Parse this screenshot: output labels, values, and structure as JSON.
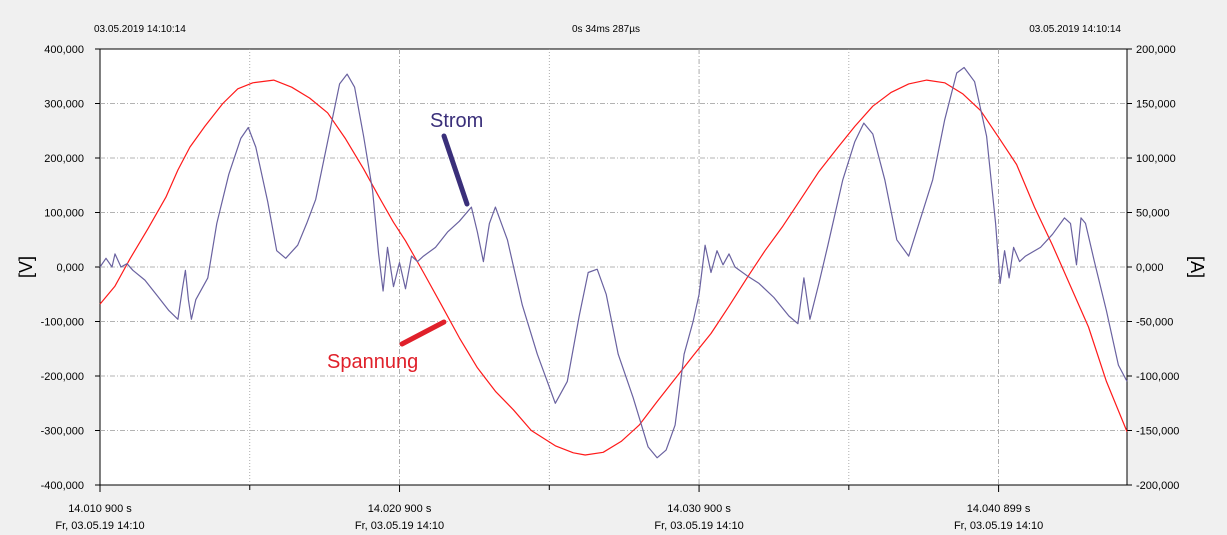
{
  "header": {
    "left_timestamp": "03.05.2019 14:10:14",
    "center_duration": "0s 34ms 287µs",
    "right_timestamp": "03.05.2019 14:10:14"
  },
  "colors": {
    "voltage": "#ff1a1a",
    "current": "#6a62a0",
    "grid": "#9a9a9a",
    "plot_background": "#ffffff",
    "page_background": "#f0f0f0",
    "annotation_strom": "#3a2f7a",
    "annotation_spannung": "#e0202a"
  },
  "annotations": {
    "strom": "Strom",
    "spannung": "Spannung"
  },
  "chart_data": {
    "type": "line",
    "grid": true,
    "x": {
      "unit": "ms",
      "range": [
        0,
        34.287
      ],
      "tick_labels": [
        {
          "x": 0.0,
          "line1": "14.010 900 s",
          "line2": "Fr, 03.05.19 14:10"
        },
        {
          "x": 10.0,
          "line1": "14.020 900 s",
          "line2": "Fr, 03.05.19 14:10"
        },
        {
          "x": 20.0,
          "line1": "14.030 900 s",
          "line2": "Fr, 03.05.19 14:10"
        },
        {
          "x": 30.0,
          "line1": "14.040 899 s",
          "line2": "Fr, 03.05.19 14:10"
        }
      ],
      "minor_ticks": [
        5,
        15,
        25
      ]
    },
    "y_left": {
      "label": "[V]",
      "range": [
        -400000,
        400000
      ],
      "ticks": [
        400000,
        300000,
        200000,
        100000,
        0,
        -100000,
        -200000,
        -300000,
        -400000
      ],
      "tick_labels": [
        "400,000",
        "300,000",
        "200,000",
        "100,000",
        "0,000",
        "-100,000",
        "-200,000",
        "-300,000",
        "-400,000"
      ]
    },
    "y_right": {
      "label": "[A]",
      "range": [
        -200000,
        200000
      ],
      "ticks": [
        200000,
        150000,
        100000,
        50000,
        0,
        -50000,
        -100000,
        -150000,
        -200000
      ],
      "tick_labels": [
        "200,000",
        "150,000",
        "100,000",
        "50,000",
        "0,000",
        "-50,000",
        "-100,000",
        "-150,000",
        "-200,000"
      ]
    },
    "series": [
      {
        "name": "Spannung",
        "axis": "left",
        "points": [
          [
            0.0,
            -68000
          ],
          [
            0.5,
            -35000
          ],
          [
            1.0,
            15000
          ],
          [
            1.6,
            70000
          ],
          [
            2.2,
            128000
          ],
          [
            2.6,
            178000
          ],
          [
            3.0,
            220000
          ],
          [
            3.5,
            258000
          ],
          [
            4.1,
            300000
          ],
          [
            4.6,
            327000
          ],
          [
            5.1,
            338000
          ],
          [
            5.8,
            343000
          ],
          [
            6.4,
            330000
          ],
          [
            7.0,
            310000
          ],
          [
            7.6,
            283000
          ],
          [
            8.2,
            235000
          ],
          [
            8.8,
            180000
          ],
          [
            9.3,
            130000
          ],
          [
            9.8,
            82000
          ],
          [
            10.2,
            48000
          ],
          [
            10.8,
            -10000
          ],
          [
            11.4,
            -70000
          ],
          [
            12.0,
            -130000
          ],
          [
            12.6,
            -185000
          ],
          [
            13.2,
            -228000
          ],
          [
            13.8,
            -262000
          ],
          [
            14.4,
            -300000
          ],
          [
            15.2,
            -328000
          ],
          [
            15.8,
            -341000
          ],
          [
            16.2,
            -345000
          ],
          [
            16.8,
            -340000
          ],
          [
            17.4,
            -320000
          ],
          [
            18.0,
            -290000
          ],
          [
            18.6,
            -247000
          ],
          [
            19.2,
            -205000
          ],
          [
            19.8,
            -163000
          ],
          [
            20.4,
            -122000
          ],
          [
            21.0,
            -72000
          ],
          [
            21.6,
            -20000
          ],
          [
            22.2,
            30000
          ],
          [
            22.8,
            75000
          ],
          [
            23.4,
            125000
          ],
          [
            24.0,
            175000
          ],
          [
            24.6,
            217000
          ],
          [
            25.2,
            258000
          ],
          [
            25.8,
            295000
          ],
          [
            26.4,
            320000
          ],
          [
            27.0,
            336000
          ],
          [
            27.6,
            343000
          ],
          [
            28.2,
            338000
          ],
          [
            28.8,
            318000
          ],
          [
            29.4,
            287000
          ],
          [
            30.0,
            238000
          ],
          [
            30.6,
            188000
          ],
          [
            31.2,
            110000
          ],
          [
            31.8,
            40000
          ],
          [
            32.4,
            -35000
          ],
          [
            33.0,
            -110000
          ],
          [
            33.6,
            -210000
          ],
          [
            34.287,
            -302000
          ]
        ]
      },
      {
        "name": "Strom",
        "axis": "right",
        "points": [
          [
            0.0,
            0
          ],
          [
            0.2,
            8000
          ],
          [
            0.4,
            0
          ],
          [
            0.5,
            12000
          ],
          [
            0.7,
            0
          ],
          [
            0.9,
            3000
          ],
          [
            1.1,
            -3000
          ],
          [
            1.5,
            -12000
          ],
          [
            1.9,
            -26000
          ],
          [
            2.3,
            -40000
          ],
          [
            2.6,
            -48000
          ],
          [
            2.75,
            -20000
          ],
          [
            2.85,
            -3000
          ],
          [
            2.95,
            -30000
          ],
          [
            3.05,
            -48000
          ],
          [
            3.2,
            -30000
          ],
          [
            3.6,
            -10000
          ],
          [
            3.9,
            40000
          ],
          [
            4.3,
            85000
          ],
          [
            4.7,
            118000
          ],
          [
            4.95,
            128000
          ],
          [
            5.2,
            110000
          ],
          [
            5.6,
            60000
          ],
          [
            5.9,
            15000
          ],
          [
            6.2,
            8000
          ],
          [
            6.6,
            20000
          ],
          [
            6.9,
            40000
          ],
          [
            7.2,
            62000
          ],
          [
            7.6,
            115000
          ],
          [
            8.0,
            168000
          ],
          [
            8.25,
            177000
          ],
          [
            8.5,
            165000
          ],
          [
            8.8,
            120000
          ],
          [
            9.1,
            70000
          ],
          [
            9.3,
            12000
          ],
          [
            9.45,
            -22000
          ],
          [
            9.6,
            18000
          ],
          [
            9.8,
            -18000
          ],
          [
            10.0,
            4000
          ],
          [
            10.2,
            -20000
          ],
          [
            10.4,
            10000
          ],
          [
            10.6,
            5000
          ],
          [
            10.8,
            10000
          ],
          [
            11.2,
            18000
          ],
          [
            11.6,
            32000
          ],
          [
            12.0,
            42000
          ],
          [
            12.4,
            55000
          ],
          [
            12.6,
            32000
          ],
          [
            12.8,
            5000
          ],
          [
            13.0,
            40000
          ],
          [
            13.2,
            55000
          ],
          [
            13.6,
            25000
          ],
          [
            14.1,
            -35000
          ],
          [
            14.6,
            -80000
          ],
          [
            15.2,
            -125000
          ],
          [
            15.6,
            -105000
          ],
          [
            16.0,
            -45000
          ],
          [
            16.3,
            -5000
          ],
          [
            16.6,
            -2000
          ],
          [
            16.9,
            -25000
          ],
          [
            17.3,
            -80000
          ],
          [
            17.8,
            -120000
          ],
          [
            18.3,
            -165000
          ],
          [
            18.6,
            -175000
          ],
          [
            18.9,
            -168000
          ],
          [
            19.2,
            -145000
          ],
          [
            19.5,
            -80000
          ],
          [
            19.8,
            -50000
          ],
          [
            20.0,
            -25000
          ],
          [
            20.2,
            20000
          ],
          [
            20.4,
            -5000
          ],
          [
            20.6,
            15000
          ],
          [
            20.8,
            2000
          ],
          [
            21.0,
            12000
          ],
          [
            21.2,
            0
          ],
          [
            21.6,
            -8000
          ],
          [
            22.0,
            -15000
          ],
          [
            22.5,
            -28000
          ],
          [
            23.0,
            -45000
          ],
          [
            23.3,
            -52000
          ],
          [
            23.5,
            -10000
          ],
          [
            23.7,
            -48000
          ],
          [
            24.0,
            -15000
          ],
          [
            24.3,
            20000
          ],
          [
            24.8,
            80000
          ],
          [
            25.2,
            115000
          ],
          [
            25.5,
            132000
          ],
          [
            25.8,
            122000
          ],
          [
            26.2,
            80000
          ],
          [
            26.6,
            25000
          ],
          [
            27.0,
            10000
          ],
          [
            27.4,
            45000
          ],
          [
            27.8,
            80000
          ],
          [
            28.2,
            135000
          ],
          [
            28.6,
            178000
          ],
          [
            28.85,
            183000
          ],
          [
            29.2,
            170000
          ],
          [
            29.6,
            120000
          ],
          [
            29.9,
            40000
          ],
          [
            30.05,
            -15000
          ],
          [
            30.2,
            15000
          ],
          [
            30.35,
            -10000
          ],
          [
            30.5,
            18000
          ],
          [
            30.7,
            5000
          ],
          [
            30.9,
            10000
          ],
          [
            31.4,
            18000
          ],
          [
            31.8,
            30000
          ],
          [
            32.2,
            45000
          ],
          [
            32.4,
            40000
          ],
          [
            32.6,
            2000
          ],
          [
            32.75,
            45000
          ],
          [
            32.9,
            40000
          ],
          [
            33.2,
            5000
          ],
          [
            33.6,
            -40000
          ],
          [
            34.0,
            -90000
          ],
          [
            34.287,
            -105000
          ]
        ]
      }
    ]
  }
}
